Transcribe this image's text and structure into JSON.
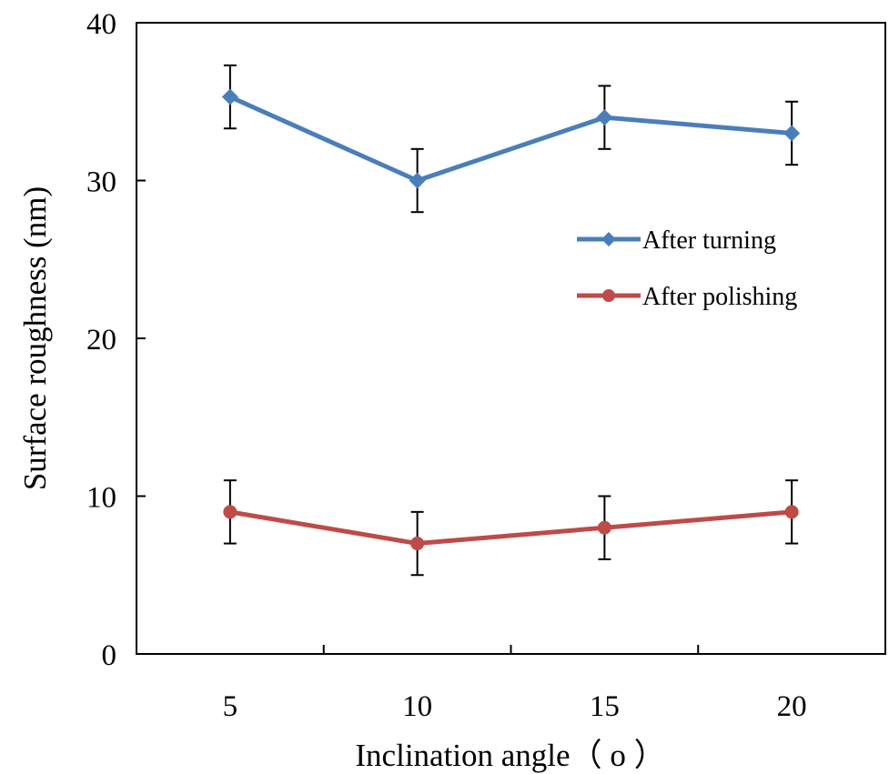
{
  "chart_data": {
    "type": "line",
    "title": "",
    "xlabel": "Inclination  angle（ o ）",
    "ylabel": "Surface roughness (nm)",
    "x": [
      5,
      10,
      15,
      20
    ],
    "x_ticks": [
      "5",
      "10",
      "15",
      "20"
    ],
    "y_ticks": [
      "0",
      "10",
      "20",
      "30",
      "40"
    ],
    "ylim": [
      0,
      40
    ],
    "grid": false,
    "legend_position": "right, mid-upper",
    "series": [
      {
        "name": "After turning",
        "values": [
          35.3,
          30.0,
          34.0,
          33.0
        ],
        "error": [
          2.0,
          2.0,
          2.0,
          2.0
        ],
        "color": "#4a7ebb",
        "marker": "diamond"
      },
      {
        "name": "After polishing",
        "values": [
          9.0,
          7.0,
          8.0,
          9.0
        ],
        "error": [
          2.0,
          2.0,
          2.0,
          2.0
        ],
        "color": "#be4b48",
        "marker": "circle"
      }
    ]
  }
}
